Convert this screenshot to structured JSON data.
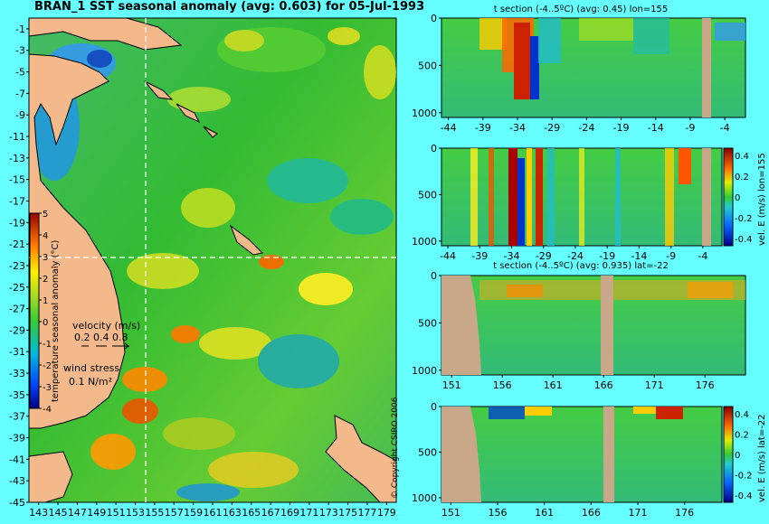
{
  "header": {
    "map_title": "BRAN_1 SST seasonal anomaly (avg: 0.603) for 05-Jul-1993",
    "copyright": "© Copyright CSIRO 2006"
  },
  "legend": {
    "colorbar_label": "temperature seasonal anomaly (°C)",
    "colorbar_ticks": [
      "5",
      "4",
      "3",
      "2",
      "1",
      "0",
      "-1",
      "-2",
      "-3",
      "-4"
    ],
    "velocity_label": "velocity (m/s)",
    "velocity_scale": "0.2 0.4 0.8",
    "wind_label": "wind stress",
    "wind_scale": "0.1 N/m²"
  },
  "colors": {
    "background": "#66ffff",
    "land": "#f4b98a",
    "land_section": "#c8a888",
    "anomaly_pos": "#ff3300",
    "anomaly_neutral": "#33cc33",
    "anomaly_neg": "#0033cc"
  },
  "chart_data": [
    {
      "type": "heatmap",
      "name": "map",
      "title": "BRAN_1 SST seasonal anomaly (avg: 0.603) for 05-Jul-1993",
      "x_ticks": [
        "143",
        "145",
        "147",
        "149",
        "151",
        "153",
        "155",
        "157",
        "159",
        "161",
        "163",
        "165",
        "167",
        "169",
        "171",
        "173",
        "175",
        "177",
        "179"
      ],
      "y_ticks": [
        "-1",
        "-3",
        "-5",
        "-7",
        "-9",
        "-11",
        "-13",
        "-15",
        "-17",
        "-19",
        "-21",
        "-23",
        "-25",
        "-27",
        "-29",
        "-31",
        "-33",
        "-35",
        "-37",
        "-39",
        "-41",
        "-43",
        "-45"
      ],
      "xlim": [
        142,
        180
      ],
      "ylim": [
        -45,
        0
      ],
      "crosshair": {
        "lon": 155,
        "lat": -22
      },
      "colorbar": {
        "min": -4,
        "max": 5,
        "label": "temperature seasonal anomaly (°C)"
      }
    },
    {
      "type": "heatmap",
      "name": "section1",
      "title": "t section (-4..5ºC) (avg: 0.45) lon=155",
      "x_ticks": [
        "-44",
        "-39",
        "-34",
        "-29",
        "-24",
        "-19",
        "-14",
        "-9",
        "-4"
      ],
      "y_ticks": [
        "0",
        "500",
        "1000"
      ],
      "xlim": [
        -45,
        -1
      ],
      "ylim": [
        1050,
        0
      ]
    },
    {
      "type": "heatmap",
      "name": "section2",
      "title": "",
      "x_ticks": [
        "-44",
        "-39",
        "-34",
        "-29",
        "-24",
        "-19",
        "-14",
        "-9",
        "-4"
      ],
      "y_ticks": [
        "0",
        "500",
        "1000"
      ],
      "xlim": [
        -45,
        -1
      ],
      "ylim": [
        1050,
        0
      ],
      "colorbar": {
        "ticks": [
          "0.4",
          "0.2",
          "0",
          "-0.2",
          "-0.4"
        ],
        "label": "vel. E (m/s) lon=155"
      }
    },
    {
      "type": "heatmap",
      "name": "section3",
      "title": "t section (-4..5ºC) (avg: 0.935) lat=-22",
      "x_ticks": [
        "151",
        "156",
        "161",
        "166",
        "171",
        "176"
      ],
      "y_ticks": [
        "0",
        "500",
        "1000"
      ],
      "xlim": [
        150,
        180
      ],
      "ylim": [
        1050,
        0
      ]
    },
    {
      "type": "heatmap",
      "name": "section4",
      "title": "",
      "x_ticks": [
        "151",
        "156",
        "161",
        "166",
        "171",
        "176"
      ],
      "y_ticks": [
        "0",
        "500",
        "1000"
      ],
      "xlim": [
        150,
        180
      ],
      "ylim": [
        1050,
        0
      ],
      "colorbar": {
        "ticks": [
          "0.4",
          "0.2",
          "0",
          "-0.2",
          "-0.4"
        ],
        "label": "vel. E (m/s) lat=-22"
      }
    }
  ]
}
